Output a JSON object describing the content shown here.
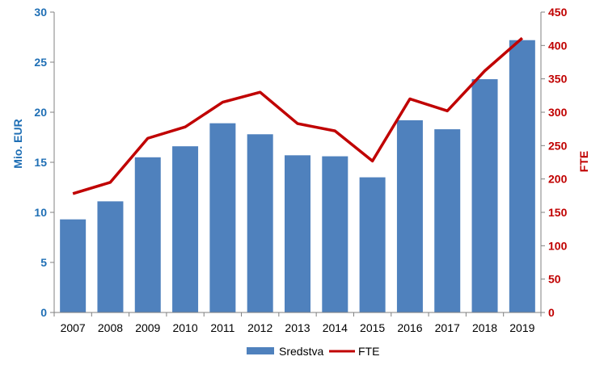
{
  "chart_data": {
    "type": "bar",
    "categories": [
      "2007",
      "2008",
      "2009",
      "2010",
      "2011",
      "2012",
      "2013",
      "2014",
      "2015",
      "2016",
      "2017",
      "2018",
      "2019"
    ],
    "series": [
      {
        "name": "Sredstva",
        "type": "bar",
        "axis": "left",
        "values": [
          9.3,
          11.1,
          15.5,
          16.6,
          18.9,
          17.8,
          15.7,
          15.6,
          13.5,
          19.2,
          18.3,
          23.3,
          27.2
        ]
      },
      {
        "name": "FTE",
        "type": "line",
        "axis": "right",
        "values": [
          178,
          195,
          261,
          278,
          315,
          330,
          283,
          272,
          227,
          320,
          302,
          362,
          411
        ]
      }
    ],
    "ylabel": "Mio. EUR",
    "y2label": "FTE",
    "ylim": [
      0,
      30
    ],
    "y2lim": [
      0,
      450
    ],
    "yticks": [
      "0",
      "5",
      "10",
      "15",
      "20",
      "25",
      "30"
    ],
    "y2ticks": [
      "0",
      "50",
      "100",
      "150",
      "200",
      "250",
      "300",
      "350",
      "400",
      "450"
    ],
    "legend_position": "bottom",
    "grid": false,
    "colors": {
      "bars": "#4f81bd",
      "line": "#c00000",
      "left_axis": "#1f6fb5",
      "right_axis": "#c00000"
    }
  }
}
